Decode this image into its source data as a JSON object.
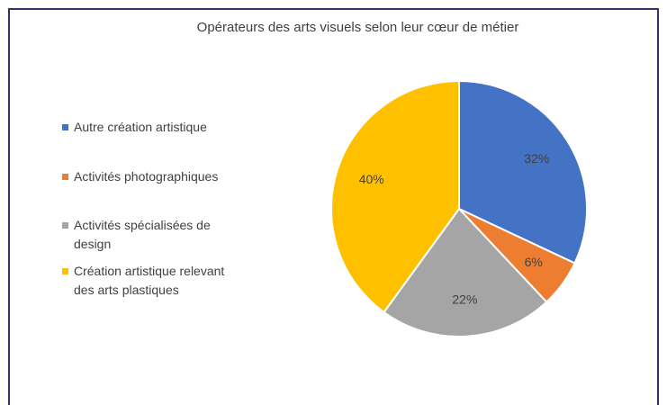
{
  "chart_data": {
    "type": "pie",
    "title": "Opérateurs des arts visuels selon leur cœur de métier",
    "categories": [
      "Autre création artistique",
      "Activités photographiques",
      "Activités spécialisées de design",
      "Création artistique relevant des arts plastiques"
    ],
    "values": [
      32,
      6,
      22,
      40
    ],
    "value_labels": [
      "32%",
      "6%",
      "22%",
      "40%"
    ],
    "colors": [
      "#4472c4",
      "#ed7d31",
      "#a5a5a5",
      "#ffc000"
    ],
    "legend": "left"
  }
}
